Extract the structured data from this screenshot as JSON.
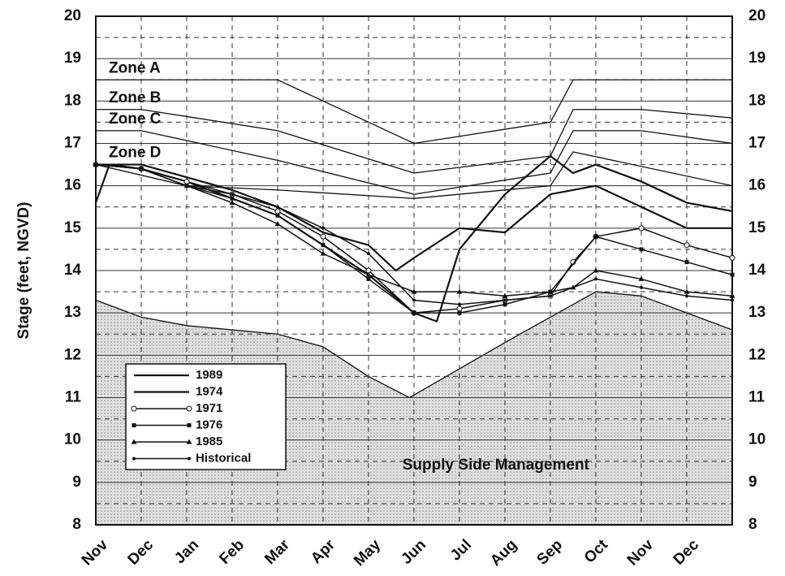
{
  "chart_data": {
    "type": "line",
    "y_label": "Stage (feet, NGVD)",
    "xlim": [
      0,
      14
    ],
    "xticks": [
      {
        "value": 0,
        "label": "Nov"
      },
      {
        "value": 1,
        "label": "Dec"
      },
      {
        "value": 2,
        "label": "Jan"
      },
      {
        "value": 3,
        "label": "Feb"
      },
      {
        "value": 4,
        "label": "Mar"
      },
      {
        "value": 5,
        "label": "Apr"
      },
      {
        "value": 6,
        "label": "May"
      },
      {
        "value": 7,
        "label": "Jun"
      },
      {
        "value": 8,
        "label": "Jul"
      },
      {
        "value": 9,
        "label": "Aug"
      },
      {
        "value": 10,
        "label": "Sep"
      },
      {
        "value": 11,
        "label": "Oct"
      },
      {
        "value": 12,
        "label": "Nov"
      },
      {
        "value": 13,
        "label": "Dec"
      }
    ],
    "ylim": [
      8,
      20
    ],
    "yticks": [
      8,
      9,
      10,
      11,
      12,
      13,
      14,
      15,
      16,
      17,
      18,
      19,
      20
    ],
    "y2lim": [
      8,
      20
    ],
    "y2ticks": [
      8,
      9,
      10,
      11,
      12,
      13,
      14,
      15,
      16,
      17,
      18,
      19,
      20
    ],
    "grid": true,
    "color": "#111",
    "zones": [
      {
        "name": "Zone A",
        "x": [
          0,
          4,
          7,
          10,
          10.5,
          14
        ],
        "values": [
          18.5,
          18.5,
          17.0,
          17.5,
          18.5,
          18.5
        ]
      },
      {
        "name": "Zone B",
        "x": [
          0,
          1,
          4,
          7,
          10,
          10.5,
          12,
          14
        ],
        "values": [
          17.8,
          17.8,
          17.3,
          16.3,
          16.7,
          17.8,
          17.8,
          17.6
        ]
      },
      {
        "name": "Zone C",
        "x": [
          0,
          1,
          4,
          7,
          10,
          10.5,
          12,
          14
        ],
        "values": [
          17.3,
          17.3,
          16.6,
          15.8,
          16.3,
          17.3,
          17.3,
          17.0
        ]
      },
      {
        "name": "Zone D",
        "x": [
          0,
          2,
          4,
          7,
          10,
          10.5,
          14
        ],
        "values": [
          16.5,
          16.0,
          15.9,
          15.7,
          16.0,
          16.8,
          16.0
        ]
      }
    ],
    "supply_side": {
      "label": "Supply Side Management",
      "color": "#d4d4d4",
      "x": [
        0,
        1,
        2,
        4,
        5,
        6,
        6.9,
        9,
        11,
        12,
        13,
        14
      ],
      "values": [
        13.3,
        12.9,
        12.7,
        12.5,
        12.2,
        11.5,
        11.0,
        12.3,
        13.5,
        13.4,
        13.0,
        12.6
      ]
    },
    "series": [
      {
        "name": "1989",
        "marker": "none",
        "x": [
          0,
          0.3,
          1,
          2,
          3,
          4,
          5,
          6,
          7,
          7.5,
          8,
          9,
          10,
          10.5,
          11,
          12,
          13,
          14
        ],
        "values": [
          15.6,
          16.5,
          16.4,
          16.1,
          15.7,
          15.3,
          14.6,
          13.9,
          13.0,
          12.8,
          14.5,
          15.8,
          16.7,
          16.3,
          16.5,
          16.1,
          15.6,
          15.4
        ]
      },
      {
        "name": "1974",
        "marker": "none",
        "x": [
          0,
          1,
          2,
          3,
          4,
          5,
          6,
          6.6,
          7,
          8,
          9,
          10,
          11,
          12,
          13,
          14
        ],
        "values": [
          16.5,
          16.5,
          16.2,
          15.9,
          15.5,
          14.9,
          14.6,
          14.0,
          14.3,
          15.0,
          14.9,
          15.8,
          16.0,
          15.5,
          15.0,
          15.0
        ]
      },
      {
        "name": "1971",
        "marker": "circle",
        "x": [
          0,
          1,
          2,
          3,
          4,
          5,
          6,
          7,
          8,
          9,
          10,
          10.5,
          11,
          12,
          13,
          14
        ],
        "values": [
          16.5,
          16.4,
          16.1,
          15.8,
          15.4,
          14.8,
          14.0,
          13.0,
          13.1,
          13.3,
          13.4,
          14.2,
          14.8,
          15.0,
          14.6,
          14.3
        ]
      },
      {
        "name": "1976",
        "marker": "square",
        "x": [
          0,
          1,
          2,
          3,
          4,
          5,
          6,
          7,
          8,
          9,
          10,
          11,
          12,
          13,
          14
        ],
        "values": [
          16.5,
          16.4,
          16.0,
          15.7,
          15.3,
          14.6,
          13.8,
          13.0,
          13.0,
          13.2,
          13.5,
          14.8,
          14.5,
          14.2,
          13.9
        ]
      },
      {
        "name": "1985",
        "marker": "triangle",
        "x": [
          0,
          1,
          2,
          3,
          4,
          5,
          6,
          7,
          8,
          9,
          10,
          10.5,
          11,
          12,
          13,
          14
        ],
        "values": [
          16.5,
          16.4,
          16.0,
          15.6,
          15.1,
          14.4,
          13.9,
          13.5,
          13.5,
          13.4,
          13.5,
          13.6,
          14.0,
          13.8,
          13.5,
          13.4
        ]
      },
      {
        "name": "Historical",
        "marker": "dot",
        "x": [
          0,
          1,
          2,
          3,
          4,
          5,
          6,
          7,
          8,
          9,
          10,
          11,
          12,
          13,
          14
        ],
        "values": [
          16.5,
          16.4,
          16.0,
          15.8,
          15.5,
          15.0,
          14.4,
          13.3,
          13.2,
          13.3,
          13.4,
          13.8,
          13.6,
          13.4,
          13.3
        ]
      }
    ]
  }
}
